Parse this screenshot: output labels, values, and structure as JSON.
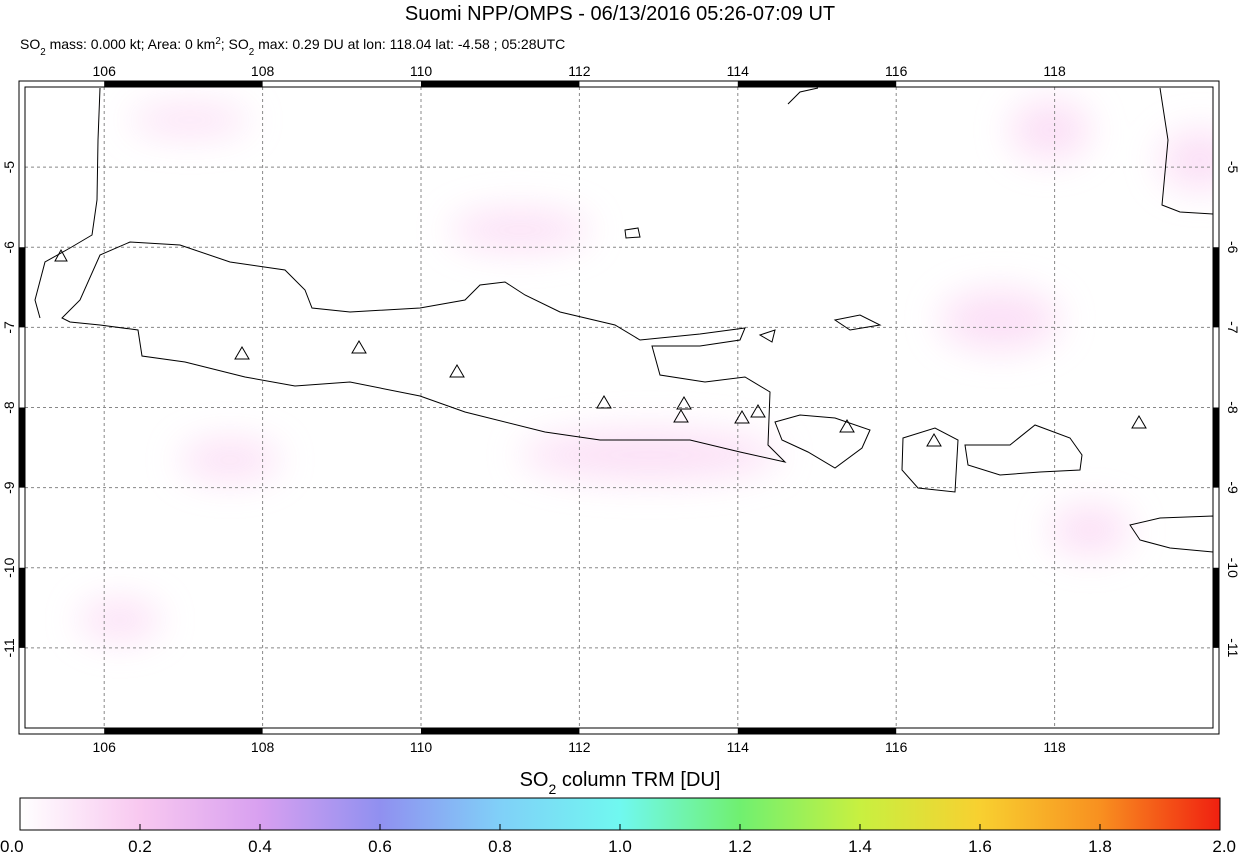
{
  "map": {
    "title": "Suomi NPP/OMPS - 06/13/2016 05:26-07:09 UT",
    "subtitle_parts": [
      "SO",
      "2",
      " mass: 0.000 kt; Area: 0 km",
      "2",
      "; SO",
      "2",
      " max: 0.29 DU at lon: 118.04 lat: -4.58 ; 05:28UTC"
    ],
    "xlim": [
      105,
      120
    ],
    "ylim": [
      -12,
      -4
    ],
    "xticks": [
      106,
      108,
      110,
      112,
      114,
      116,
      118
    ],
    "yticks": [
      -5,
      -6,
      -7,
      -8,
      -9,
      -10,
      -11
    ],
    "grid": true,
    "colorbar": {
      "title_parts": [
        "SO",
        "2",
        " column TRM [DU]"
      ],
      "lim": [
        0,
        2
      ],
      "ticks": [
        {
          "value": 0,
          "label": "0.0"
        },
        {
          "value": 0.2,
          "label": "0.2"
        },
        {
          "value": 0.4,
          "label": "0.4"
        },
        {
          "value": 0.6,
          "label": "0.6"
        },
        {
          "value": 0.8,
          "label": "0.8"
        },
        {
          "value": 1,
          "label": "1.0"
        },
        {
          "value": 1.2,
          "label": "1.2"
        },
        {
          "value": 1.4,
          "label": "1.4"
        },
        {
          "value": 1.6,
          "label": "1.6"
        },
        {
          "value": 1.8,
          "label": "1.8"
        },
        {
          "value": 2,
          "label": "2.0"
        }
      ],
      "colors": [
        "#ffffff",
        "#f8c8f0",
        "#d8a0f0",
        "#9090f0",
        "#80d0f8",
        "#70f8f0",
        "#70f070",
        "#c8f040",
        "#f8d030",
        "#f89020",
        "#f02010"
      ]
    }
  }
}
